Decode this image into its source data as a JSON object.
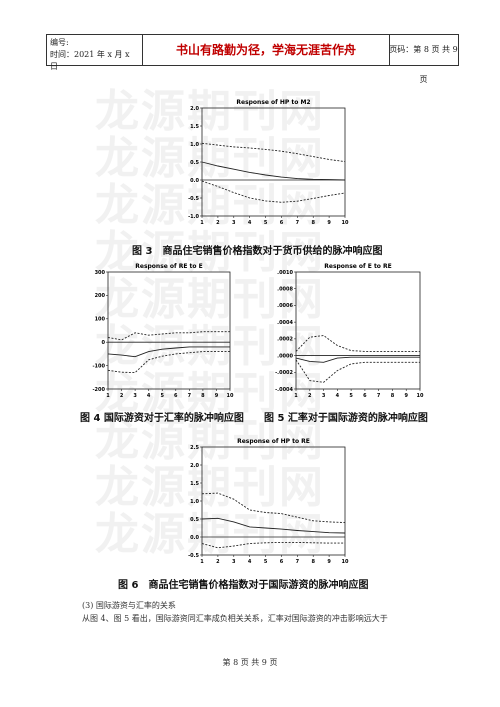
{
  "header": {
    "id_label": "编号:",
    "time_label": "时间：2021 年 x 月 x 日",
    "motto": "书山有路勤为径，学海无涯苦作舟",
    "page_info": "页码：第 8 页 共 9 页"
  },
  "watermark": [
    "龙源期刊网",
    "龙源期刊网",
    "龙源期刊网",
    "龙源期刊网",
    "龙源期刊网",
    "龙源期刊网",
    "龙源期刊网",
    "龙源期刊网",
    "龙源期刊网",
    "龙源期刊网"
  ],
  "figures": [
    {
      "chart_data": {
        "type": "line",
        "title": "Response of HP to M2",
        "x": [
          1,
          2,
          3,
          4,
          5,
          6,
          7,
          8,
          9,
          10
        ],
        "xlim": [
          1,
          10
        ],
        "ylim": [
          -1.0,
          2.0
        ],
        "yticks": [
          "2.0",
          "1.5",
          "1.0",
          "0.5",
          "0.0",
          "-0.5",
          "-1.0"
        ],
        "series": [
          {
            "style": "dashed",
            "values": [
              1.02,
              0.97,
              0.92,
              0.89,
              0.85,
              0.8,
              0.73,
              0.65,
              0.57,
              0.51
            ]
          },
          {
            "style": "solid",
            "values": [
              0.5,
              0.39,
              0.3,
              0.21,
              0.14,
              0.08,
              0.04,
              0.02,
              0.01,
              0.0
            ]
          },
          {
            "style": "dashed",
            "values": [
              -0.03,
              -0.18,
              -0.35,
              -0.5,
              -0.58,
              -0.62,
              -0.59,
              -0.51,
              -0.43,
              -0.36
            ]
          }
        ]
      },
      "caption": "图 3　商品住宅销售价格指数对于货币供给的脉冲响应图"
    },
    {
      "chart_data": {
        "type": "line",
        "title": "Response of RE to E",
        "x": [
          1,
          2,
          3,
          4,
          5,
          6,
          7,
          8,
          9,
          10
        ],
        "xlim": [
          1,
          10
        ],
        "ylim": [
          -200,
          300
        ],
        "yticks": [
          "300",
          "200",
          "100",
          "0",
          "-100",
          "-200"
        ],
        "series": [
          {
            "style": "dashed",
            "values": [
              20,
              10,
              40,
              30,
              35,
              40,
              40,
              45,
              45,
              45
            ]
          },
          {
            "style": "solid",
            "values": [
              -50,
              -55,
              -62,
              -40,
              -30,
              -25,
              -20,
              -20,
              -20,
              -20
            ]
          },
          {
            "style": "dashed",
            "values": [
              -120,
              -128,
              -130,
              -75,
              -60,
              -50,
              -45,
              -40,
              -40,
              -40
            ]
          }
        ]
      },
      "caption": "图 4 国际游资对于汇率的脉冲响应图"
    },
    {
      "chart_data": {
        "type": "line",
        "title": "Response of E to RE",
        "x": [
          1,
          2,
          3,
          4,
          5,
          6,
          7,
          8,
          9,
          10
        ],
        "xlim": [
          1,
          10
        ],
        "ylim": [
          -0.0004,
          0.001
        ],
        "yticks": [
          ".0010",
          ".0008",
          ".0006",
          ".0004",
          ".0002",
          ".0000",
          "-.0002",
          "-.0004"
        ],
        "series": [
          {
            "style": "dashed",
            "values": [
              5e-05,
              0.00022,
              0.00024,
              0.00012,
              6e-05,
              5e-05,
              5e-05,
              5e-05,
              5e-05,
              5e-05
            ]
          },
          {
            "style": "solid",
            "values": [
              -3e-05,
              -7e-05,
              -8e-05,
              -3e-05,
              -2e-05,
              -2e-05,
              -2e-05,
              -2e-05,
              -2e-05,
              -2e-05
            ]
          },
          {
            "style": "dashed",
            "values": [
              -5e-05,
              -0.0003,
              -0.00032,
              -0.00018,
              -0.0001,
              -8e-05,
              -8e-05,
              -8e-05,
              -8e-05,
              -8e-05
            ]
          }
        ]
      },
      "caption": "图 5 汇率对于国际游资的脉冲响应图"
    },
    {
      "chart_data": {
        "type": "line",
        "title": "Response of HP to RE",
        "x": [
          1,
          2,
          3,
          4,
          5,
          6,
          7,
          8,
          9,
          10
        ],
        "xlim": [
          1,
          10
        ],
        "ylim": [
          -0.5,
          2.5
        ],
        "yticks": [
          "2.5",
          "2.0",
          "1.5",
          "1.0",
          "0.5",
          "0.0",
          "-0.5"
        ],
        "series": [
          {
            "style": "dashed",
            "values": [
              1.2,
              1.22,
              1.05,
              0.75,
              0.68,
              0.65,
              0.55,
              0.45,
              0.42,
              0.4
            ]
          },
          {
            "style": "solid",
            "values": [
              0.5,
              0.52,
              0.42,
              0.28,
              0.25,
              0.22,
              0.18,
              0.15,
              0.12,
              0.11
            ]
          },
          {
            "style": "dashed",
            "values": [
              -0.18,
              -0.3,
              -0.25,
              -0.18,
              -0.16,
              -0.15,
              -0.15,
              -0.16,
              -0.17,
              -0.17
            ]
          }
        ]
      },
      "caption": "图 6　商品住宅销售价格指数对于国际游资的脉冲响应图"
    }
  ],
  "body_text": {
    "section_title": "(3) 国际游资与汇率的关系",
    "line1": "从图 4、图 5 看出，国际游资同汇率成负相关关系，汇率对国际游资的冲击影响远大于"
  },
  "footer": "第 8 页 共 9 页"
}
